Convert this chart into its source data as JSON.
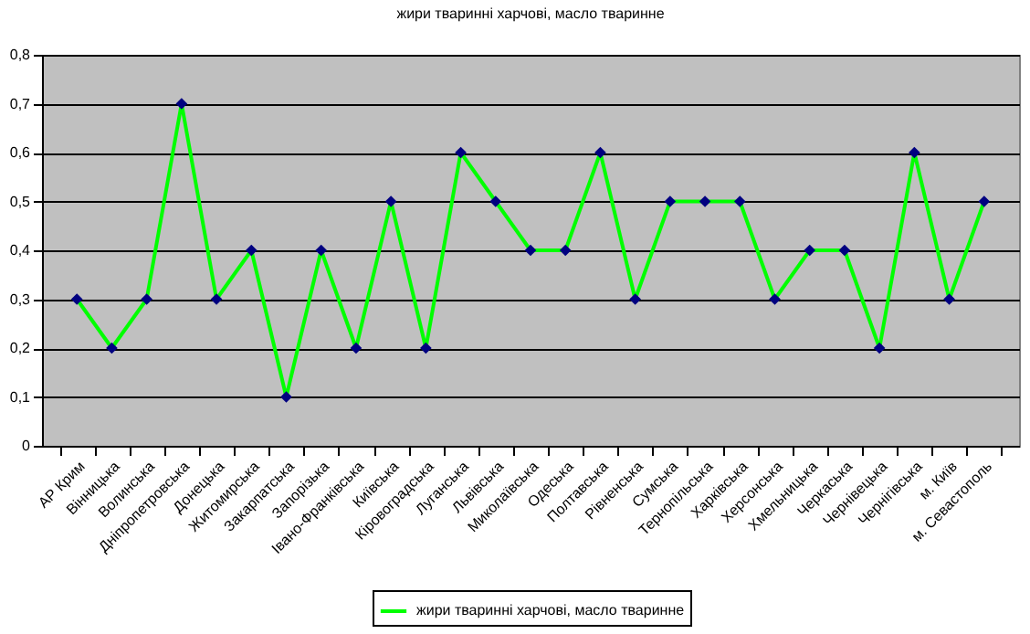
{
  "chart_data": {
    "type": "line",
    "title": "жири тваринні харчові, масло тваринне",
    "categories": [
      "АР Крим",
      "Вінницька",
      "Волинська",
      "Дніпропетровська",
      "Донецька",
      "Житомирська",
      "Закарпатська",
      "Запорізька",
      "Івано-Франківська",
      "Київська",
      "Кіровоградська",
      "Луганська",
      "Львівська",
      "Миколаївська",
      "Одеська",
      "Полтавська",
      "Рівненська",
      "Сумська",
      "Тернопільська",
      "Харківська",
      "Херсонська",
      "Хмельницька",
      "Черкаська",
      "Чернівецька",
      "Чернігівська",
      "м. Київ",
      "м. Севастополь"
    ],
    "series": [
      {
        "name": "жири тваринні харчові, масло тваринне",
        "color": "#00ff00",
        "values": [
          0.3,
          0.2,
          0.3,
          0.7,
          0.3,
          0.4,
          0.1,
          0.4,
          0.2,
          0.5,
          0.2,
          0.6,
          0.5,
          0.4,
          0.4,
          0.6,
          0.3,
          0.5,
          0.5,
          0.5,
          0.3,
          0.4,
          0.4,
          0.2,
          0.6,
          0.3,
          0.5
        ]
      }
    ],
    "ylim": [
      0,
      0.8
    ],
    "yticks": [
      0,
      {
        "value": 0.1,
        "label": "0,1"
      },
      {
        "value": 0.2,
        "label": "0,2"
      },
      {
        "value": 0.3,
        "label": "0,3"
      },
      {
        "value": 0.4,
        "label": "0,4"
      },
      {
        "value": 0.5,
        "label": "0,5"
      },
      {
        "value": 0.6,
        "label": "0,6"
      },
      {
        "value": 0.7,
        "label": "0,7"
      },
      {
        "value": 0.8,
        "label": "0,8"
      }
    ],
    "grid": "y",
    "legend": "bottom",
    "marker": "diamond"
  }
}
